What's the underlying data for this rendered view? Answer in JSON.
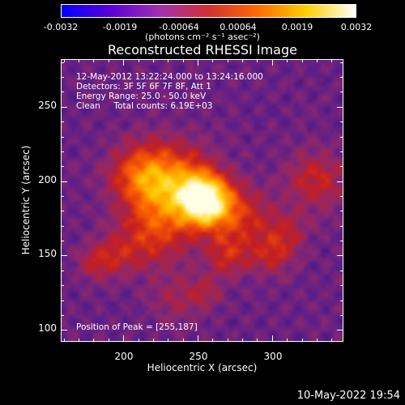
{
  "colorbar": {
    "ticks": [
      "-0.0032",
      "-0.0019",
      "-0.00064",
      "0.00064",
      "0.0019",
      "0.0032"
    ],
    "units_label": "(photons cm⁻² s⁻¹ asec⁻²)",
    "gradient": [
      "#0000ff",
      "#5a00d4",
      "#a030b0",
      "#d03030",
      "#ff6a00",
      "#ffd000",
      "#ffffff"
    ]
  },
  "title": "Reconstructed RHESSI Image",
  "annotations": {
    "line1": "12-May-2012 13:22:24.000 to 13:24:16.000",
    "line2": "Detectors: 3F 5F 6F 7F 8F, Att 1",
    "line3": "Energy Range: 25.0 - 50.0 keV",
    "line4": "Clean     Total counts: 6.19E+03",
    "peak": "Position of Peak = [255,187]"
  },
  "footer_date": "10-May-2022 19:54",
  "chart_data": {
    "type": "heatmap",
    "title": "Reconstructed RHESSI Image",
    "xlabel": "Heliocentric X (arcsec)",
    "ylabel": "Heliocentric Y (arcsec)",
    "xlim": [
      158,
      348
    ],
    "ylim": [
      92,
      282
    ],
    "xticks": [
      200,
      250,
      300
    ],
    "yticks": [
      100,
      150,
      200,
      250
    ],
    "colorbar_range": [
      -0.0032,
      0.0032
    ],
    "peak": {
      "x": 255,
      "y": 187
    },
    "sources": [
      {
        "x": 255,
        "y": 187,
        "amp": 1.0,
        "sigma": 12
      },
      {
        "x": 232,
        "y": 198,
        "amp": 0.55,
        "sigma": 18
      },
      {
        "x": 210,
        "y": 205,
        "amp": 0.35,
        "sigma": 14
      },
      {
        "x": 220,
        "y": 165,
        "amp": 0.32,
        "sigma": 16
      },
      {
        "x": 280,
        "y": 175,
        "amp": 0.3,
        "sigma": 14
      },
      {
        "x": 270,
        "y": 150,
        "amp": 0.28,
        "sigma": 10
      },
      {
        "x": 300,
        "y": 150,
        "amp": 0.25,
        "sigma": 10
      },
      {
        "x": 195,
        "y": 150,
        "amp": 0.22,
        "sigma": 10
      },
      {
        "x": 180,
        "y": 145,
        "amp": 0.22,
        "sigma": 8
      },
      {
        "x": 330,
        "y": 200,
        "amp": 0.28,
        "sigma": 14
      },
      {
        "x": 310,
        "y": 165,
        "amp": 0.2,
        "sigma": 10
      },
      {
        "x": 235,
        "y": 120,
        "amp": 0.15,
        "sigma": 12
      },
      {
        "x": 255,
        "y": 125,
        "amp": 0.18,
        "sigma": 8
      }
    ]
  }
}
